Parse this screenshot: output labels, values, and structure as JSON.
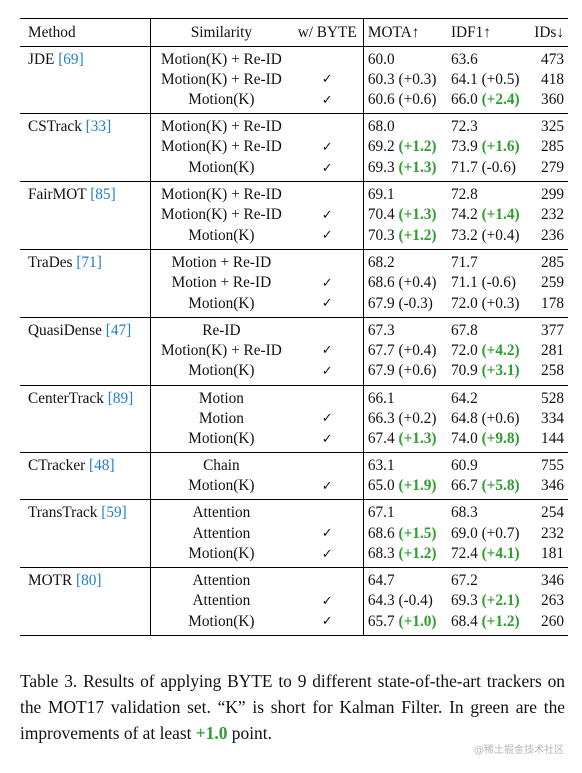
{
  "headers": {
    "method": "Method",
    "similarity": "Similarity",
    "byte": "w/ BYTE",
    "mota": "MOTA↑",
    "idf1": "IDF1↑",
    "ids": "IDs↓"
  },
  "check_symbol": "✓",
  "groups": [
    {
      "name": "JDE",
      "ref": "[69]",
      "rows": [
        {
          "sim": "Motion(K) + Re-ID",
          "byte": false,
          "mota": "60.0",
          "mota_d": "",
          "mota_g": false,
          "idf1": "63.6",
          "idf1_d": "",
          "idf1_g": false,
          "ids": "473"
        },
        {
          "sim": "Motion(K) + Re-ID",
          "byte": true,
          "mota": "60.3",
          "mota_d": "(+0.3)",
          "mota_g": false,
          "idf1": "64.1",
          "idf1_d": "(+0.5)",
          "idf1_g": false,
          "ids": "418"
        },
        {
          "sim": "Motion(K)",
          "byte": true,
          "mota": "60.6",
          "mota_d": "(+0.6)",
          "mota_g": false,
          "idf1": "66.0",
          "idf1_d": "(+2.4)",
          "idf1_g": true,
          "ids": "360"
        }
      ]
    },
    {
      "name": "CSTrack",
      "ref": "[33]",
      "rows": [
        {
          "sim": "Motion(K) + Re-ID",
          "byte": false,
          "mota": "68.0",
          "mota_d": "",
          "mota_g": false,
          "idf1": "72.3",
          "idf1_d": "",
          "idf1_g": false,
          "ids": "325"
        },
        {
          "sim": "Motion(K) + Re-ID",
          "byte": true,
          "mota": "69.2",
          "mota_d": "(+1.2)",
          "mota_g": true,
          "idf1": "73.9",
          "idf1_d": "(+1.6)",
          "idf1_g": true,
          "ids": "285"
        },
        {
          "sim": "Motion(K)",
          "byte": true,
          "mota": "69.3",
          "mota_d": "(+1.3)",
          "mota_g": true,
          "idf1": "71.7",
          "idf1_d": "(-0.6)",
          "idf1_g": false,
          "ids": "279"
        }
      ]
    },
    {
      "name": "FairMOT",
      "ref": "[85]",
      "rows": [
        {
          "sim": "Motion(K) + Re-ID",
          "byte": false,
          "mota": "69.1",
          "mota_d": "",
          "mota_g": false,
          "idf1": "72.8",
          "idf1_d": "",
          "idf1_g": false,
          "ids": "299"
        },
        {
          "sim": "Motion(K) + Re-ID",
          "byte": true,
          "mota": "70.4",
          "mota_d": "(+1.3)",
          "mota_g": true,
          "idf1": "74.2",
          "idf1_d": "(+1.4)",
          "idf1_g": true,
          "ids": "232"
        },
        {
          "sim": "Motion(K)",
          "byte": true,
          "mota": "70.3",
          "mota_d": "(+1.2)",
          "mota_g": true,
          "idf1": "73.2",
          "idf1_d": "(+0.4)",
          "idf1_g": false,
          "ids": "236"
        }
      ]
    },
    {
      "name": "TraDes",
      "ref": "[71]",
      "rows": [
        {
          "sim": "Motion + Re-ID",
          "byte": false,
          "mota": "68.2",
          "mota_d": "",
          "mota_g": false,
          "idf1": "71.7",
          "idf1_d": "",
          "idf1_g": false,
          "ids": "285"
        },
        {
          "sim": "Motion + Re-ID",
          "byte": true,
          "mota": "68.6",
          "mota_d": "(+0.4)",
          "mota_g": false,
          "idf1": "71.1",
          "idf1_d": "(-0.6)",
          "idf1_g": false,
          "ids": "259"
        },
        {
          "sim": "Motion(K)",
          "byte": true,
          "mota": "67.9",
          "mota_d": "(-0.3)",
          "mota_g": false,
          "idf1": "72.0",
          "idf1_d": "(+0.3)",
          "idf1_g": false,
          "ids": "178"
        }
      ]
    },
    {
      "name": "QuasiDense",
      "ref": "[47]",
      "rows": [
        {
          "sim": "Re-ID",
          "byte": false,
          "mota": "67.3",
          "mota_d": "",
          "mota_g": false,
          "idf1": "67.8",
          "idf1_d": "",
          "idf1_g": false,
          "ids": "377"
        },
        {
          "sim": "Motion(K) + Re-ID",
          "byte": true,
          "mota": "67.7",
          "mota_d": "(+0.4)",
          "mota_g": false,
          "idf1": "72.0",
          "idf1_d": "(+4.2)",
          "idf1_g": true,
          "ids": "281"
        },
        {
          "sim": "Motion(K)",
          "byte": true,
          "mota": "67.9",
          "mota_d": "(+0.6)",
          "mota_g": false,
          "idf1": "70.9",
          "idf1_d": "(+3.1)",
          "idf1_g": true,
          "ids": "258"
        }
      ]
    },
    {
      "name": "CenterTrack",
      "ref": "[89]",
      "rows": [
        {
          "sim": "Motion",
          "byte": false,
          "mota": "66.1",
          "mota_d": "",
          "mota_g": false,
          "idf1": "64.2",
          "idf1_d": "",
          "idf1_g": false,
          "ids": "528"
        },
        {
          "sim": "Motion",
          "byte": true,
          "mota": "66.3",
          "mota_d": "(+0.2)",
          "mota_g": false,
          "idf1": "64.8",
          "idf1_d": "(+0.6)",
          "idf1_g": false,
          "ids": "334"
        },
        {
          "sim": "Motion(K)",
          "byte": true,
          "mota": "67.4",
          "mota_d": "(+1.3)",
          "mota_g": true,
          "idf1": "74.0",
          "idf1_d": "(+9.8)",
          "idf1_g": true,
          "ids": "144"
        }
      ]
    },
    {
      "name": "CTracker",
      "ref": "[48]",
      "rows": [
        {
          "sim": "Chain",
          "byte": false,
          "mota": "63.1",
          "mota_d": "",
          "mota_g": false,
          "idf1": "60.9",
          "idf1_d": "",
          "idf1_g": false,
          "ids": "755"
        },
        {
          "sim": "Motion(K)",
          "byte": true,
          "mota": "65.0",
          "mota_d": "(+1.9)",
          "mota_g": true,
          "idf1": "66.7",
          "idf1_d": "(+5.8)",
          "idf1_g": true,
          "ids": "346"
        }
      ]
    },
    {
      "name": "TransTrack",
      "ref": "[59]",
      "rows": [
        {
          "sim": "Attention",
          "byte": false,
          "mota": "67.1",
          "mota_d": "",
          "mota_g": false,
          "idf1": "68.3",
          "idf1_d": "",
          "idf1_g": false,
          "ids": "254"
        },
        {
          "sim": "Attention",
          "byte": true,
          "mota": "68.6",
          "mota_d": "(+1.5)",
          "mota_g": true,
          "idf1": "69.0",
          "idf1_d": "(+0.7)",
          "idf1_g": false,
          "ids": "232"
        },
        {
          "sim": "Motion(K)",
          "byte": true,
          "mota": "68.3",
          "mota_d": "(+1.2)",
          "mota_g": true,
          "idf1": "72.4",
          "idf1_d": "(+4.1)",
          "idf1_g": true,
          "ids": "181"
        }
      ]
    },
    {
      "name": "MOTR",
      "ref": "[80]",
      "rows": [
        {
          "sim": "Attention",
          "byte": false,
          "mota": "64.7",
          "mota_d": "",
          "mota_g": false,
          "idf1": "67.2",
          "idf1_d": "",
          "idf1_g": false,
          "ids": "346"
        },
        {
          "sim": "Attention",
          "byte": true,
          "mota": "64.3",
          "mota_d": "(-0.4)",
          "mota_g": false,
          "idf1": "69.3",
          "idf1_d": "(+2.1)",
          "idf1_g": true,
          "ids": "263"
        },
        {
          "sim": "Motion(K)",
          "byte": true,
          "mota": "65.7",
          "mota_d": "(+1.0)",
          "mota_g": true,
          "idf1": "68.4",
          "idf1_d": "(+1.2)",
          "idf1_g": true,
          "ids": "260"
        }
      ]
    }
  ],
  "caption": {
    "part1": "Table 3. Results of applying BYTE to 9 different state-of-the-art trackers on the MOT17 validation set. “K” is short for Kalman Filter. In green are the improvements of at least ",
    "highlight": "+1.0",
    "part2": " point."
  },
  "watermark": "@稀土掘金技术社区",
  "colors": {
    "green": "#2f9d2f",
    "ref": "#1f7ec9"
  }
}
